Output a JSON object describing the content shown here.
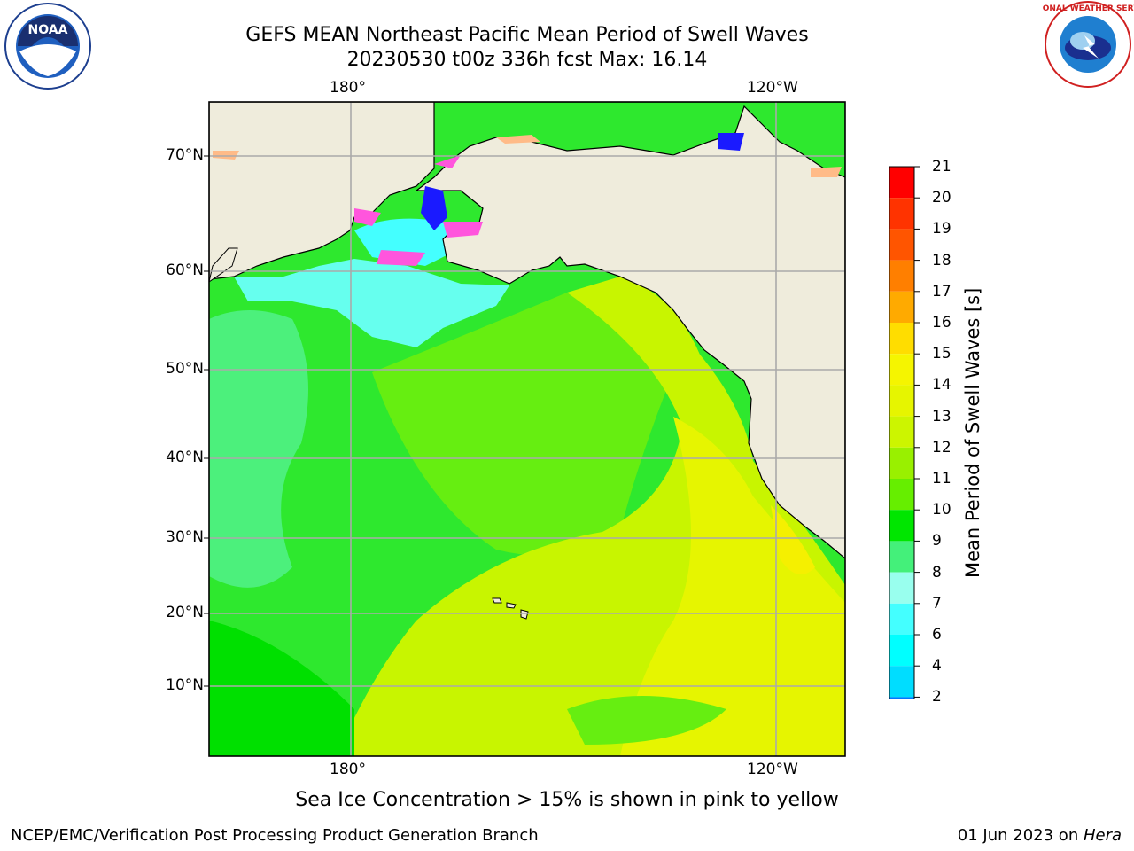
{
  "header": {
    "title_line1": "GEFS MEAN Northeast Pacific Mean Period of Swell Waves",
    "title_line2": "20230530 t00z 336h fcst   Max: 16.14"
  },
  "logos": {
    "left": "NOAA",
    "right": "NATIONAL WEATHER SERVICE"
  },
  "map": {
    "x_ticks_top": [
      "180°",
      "120°W"
    ],
    "x_ticks_bottom": [
      "180°",
      "120°W"
    ],
    "y_ticks": [
      "70°N",
      "60°N",
      "50°N",
      "40°N",
      "30°N",
      "20°N",
      "10°N"
    ],
    "land_color": "#efecdc",
    "ocean_default": "#33ff33"
  },
  "colorbar": {
    "label": "Mean Period of Swell Waves [s]",
    "ticks": [
      "21",
      "20",
      "19",
      "18",
      "17",
      "16",
      "15",
      "14",
      "13",
      "12",
      "11",
      "10",
      "9",
      "8",
      "7",
      "6",
      "4",
      "2"
    ],
    "colors": [
      "#ff0000",
      "#ff3300",
      "#ff5500",
      "#ff7f00",
      "#ffaa00",
      "#ffdd00",
      "#f5f500",
      "#e6f500",
      "#ccf500",
      "#99f000",
      "#66ee00",
      "#00e600",
      "#44f07a",
      "#99ffee",
      "#44ffff",
      "#00ffff",
      "#00ddff",
      "#0077ff"
    ],
    "under_color": "#0000ff"
  },
  "caption": "Sea Ice Concentration > 15% is shown in pink to yellow",
  "footer": {
    "left": "NCEP/EMC/Verification Post Processing Product Generation Branch",
    "right_prefix": "01 Jun 2023 on ",
    "right_machine": "Hera"
  }
}
